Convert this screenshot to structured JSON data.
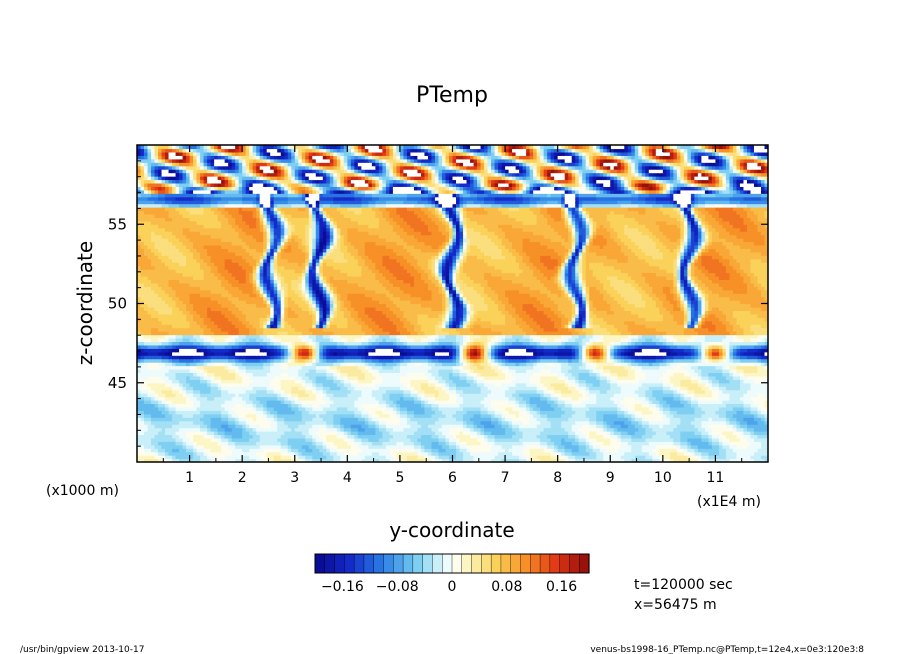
{
  "chart_data": {
    "type": "heatmap",
    "title": "PTemp",
    "xlabel": "y-coordinate",
    "ylabel": "z-coordinate",
    "x_units_left": "(x1000 m)",
    "x_units_right": "(x1E4 m)",
    "xlim": [
      0,
      12
    ],
    "ylim": [
      40,
      60
    ],
    "x_ticks": [
      1,
      2,
      3,
      4,
      5,
      6,
      7,
      8,
      9,
      10,
      11
    ],
    "y_ticks": [
      45,
      50,
      55
    ],
    "colorbar": {
      "range": [
        -0.2,
        0.2
      ],
      "tick_values": [
        -0.16,
        -0.08,
        0,
        0.08,
        0.16
      ],
      "tick_labels": [
        "−0.16",
        "−0.08",
        "0",
        "0.08",
        "0.16"
      ]
    },
    "colors": {
      "low": "#08088c",
      "mid": "#ffffff",
      "high": "#8c0a0a"
    }
  },
  "info": {
    "time": "t=120000 sec",
    "position": "x=56475 m"
  },
  "footer": {
    "left": "/usr/bin/gpview   2013-10-17",
    "right": "venus-bs1998-16_PTemp.nc@PTemp,t=12e4,x=0e3:120e3:8"
  }
}
